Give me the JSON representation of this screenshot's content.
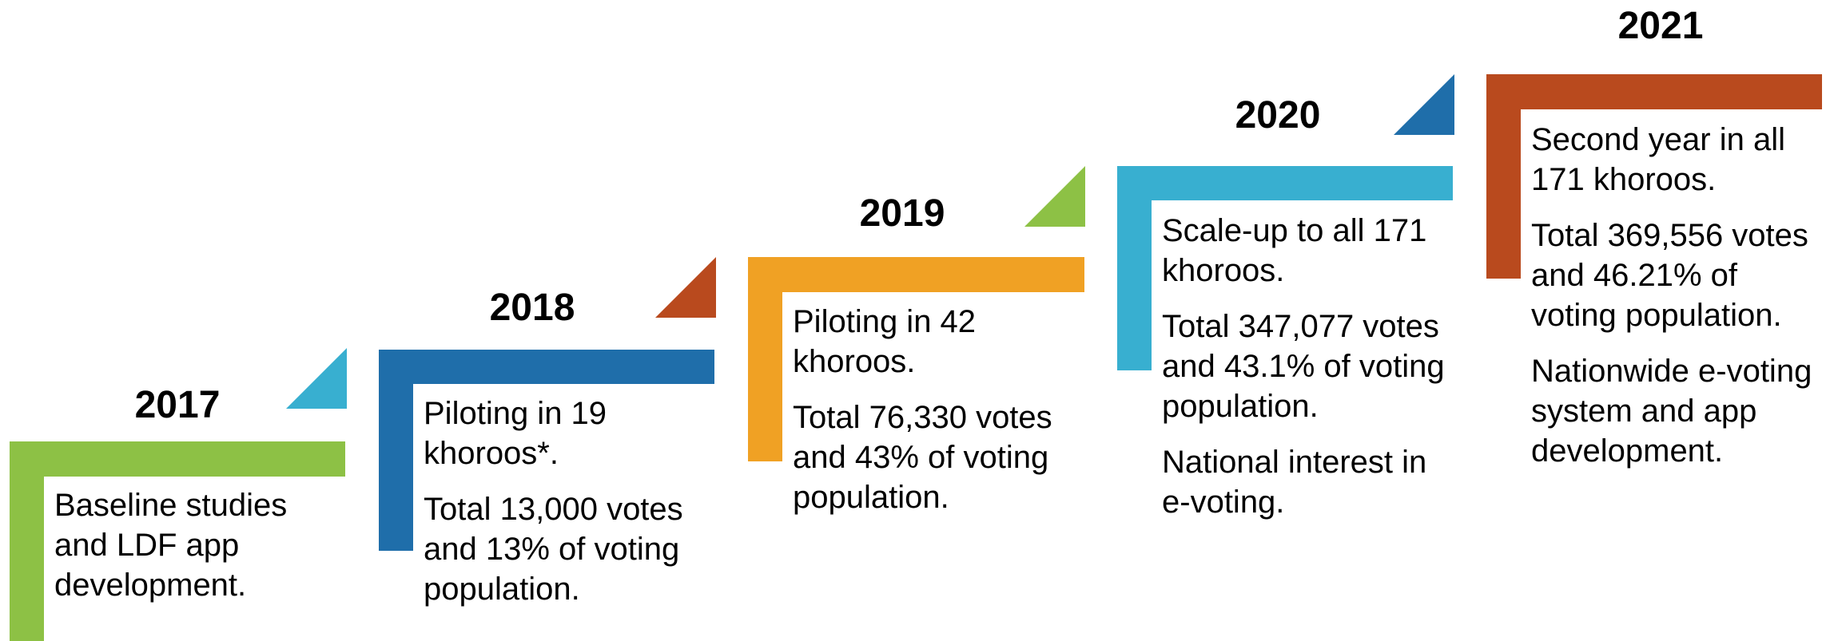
{
  "colors": {
    "green": "#8dc145",
    "blue": "#1f6eaa",
    "orange": "#f0a124",
    "cyan": "#38afd0",
    "rust": "#b94a1e"
  },
  "timeline": [
    {
      "year": "2017",
      "color": "#8dc145",
      "corner_color": "#38afd0",
      "lines": [
        "Baseline studies and LDF app development."
      ]
    },
    {
      "year": "2018",
      "color": "#1f6eaa",
      "corner_color": "#b94a1e",
      "lines": [
        "Piloting in 19 khoroos*.",
        "Total 13,000 votes and 13% of voting population."
      ]
    },
    {
      "year": "2019",
      "color": "#f0a124",
      "corner_color": "#8dc145",
      "lines": [
        "Piloting in 42 khoroos.",
        "Total 76,330 votes and 43% of voting population."
      ]
    },
    {
      "year": "2020",
      "color": "#38afd0",
      "corner_color": "#1f6eaa",
      "lines": [
        "Scale-up to all 171 khoroos.",
        "Total 347,077 votes and 43.1% of voting population.",
        "National interest in e-voting."
      ]
    },
    {
      "year": "2021",
      "color": "#b94a1e",
      "corner_color": null,
      "lines": [
        "Second year in all 171 khoroos.",
        "Total 369,556 votes and 46.21% of voting population.",
        "Nationwide e-voting system and app development."
      ]
    }
  ]
}
